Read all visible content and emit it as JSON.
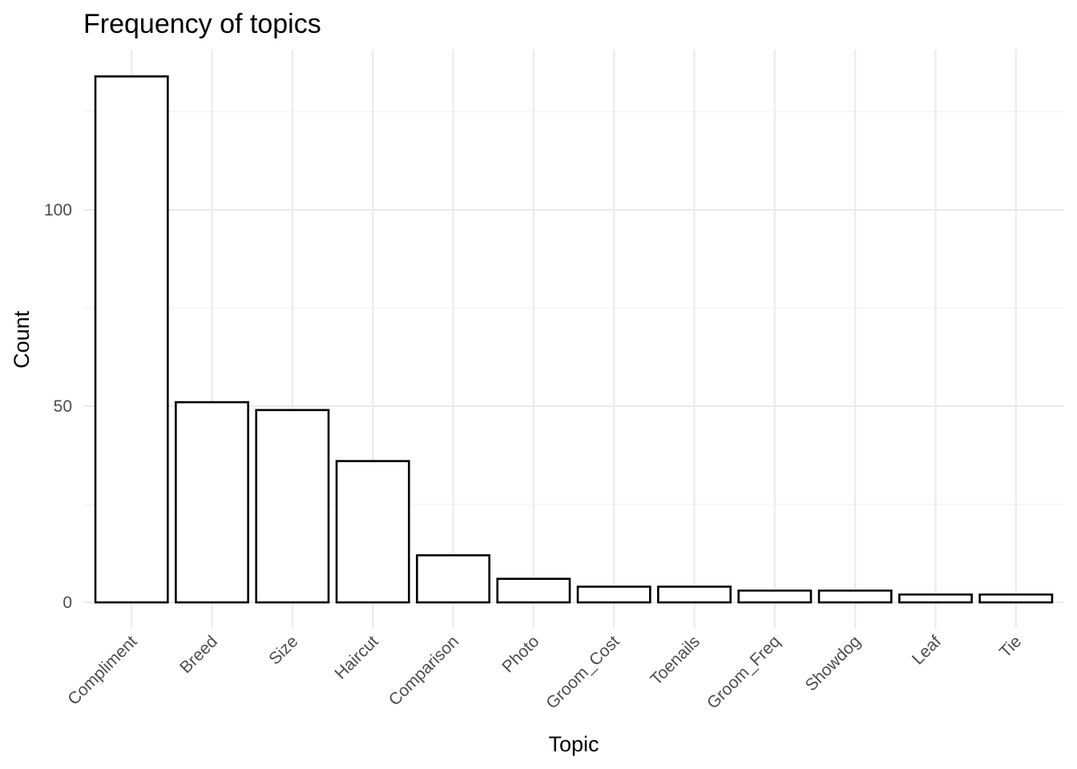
{
  "chart_data": {
    "type": "bar",
    "title": "Frequency of topics",
    "xlabel": "Topic",
    "ylabel": "Count",
    "categories": [
      "Compliment",
      "Breed",
      "Size",
      "Haircut",
      "Comparison",
      "Photo",
      "Groom_Cost",
      "Toenails",
      "Groom_Freq",
      "Showdog",
      "Leaf",
      "Tie"
    ],
    "values": [
      134,
      51,
      49,
      36,
      12,
      6,
      4,
      4,
      3,
      3,
      2,
      2
    ],
    "yticks": [
      0,
      50,
      100
    ],
    "ylim": [
      0,
      140
    ],
    "grid": true,
    "legend": "none",
    "colors": {
      "bar_fill": "#ffffff",
      "bar_stroke": "#000000",
      "grid": "#ebebeb",
      "tick_text": "#4d4d4d"
    }
  }
}
